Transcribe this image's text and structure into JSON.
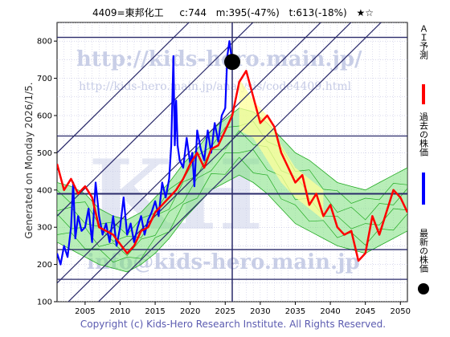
{
  "header": {
    "ticker": "4409=東邦化工",
    "current": "c:744",
    "min": "m:395(-47%)",
    "target": "t:613(-18%)",
    "stars": "★☆"
  },
  "side_text": "Generated on Monday 2026/1/5.",
  "copyright": "Copyright (c) Kids-Hero Research Institute. All Rights Reserved.",
  "watermarks": {
    "url_big": "http://kids-hero.main.jp/",
    "url_small": "http://kids-hero.main.jp/analysis/code4409.html",
    "email": "info@kids-hero.main.jp",
    "logo": "KH"
  },
  "legend": [
    {
      "label": "ＡＩ予測",
      "color": "#ff0000"
    },
    {
      "label": "過去の株価",
      "color": "#0000ff"
    },
    {
      "label": "最新の株価",
      "color": "#000000"
    }
  ],
  "colors": {
    "ai": "#ff0000",
    "past": "#0000ff",
    "band": "#7ee07e",
    "band_line": "#22aa22",
    "yellow": "#ffff99",
    "grid": "#b0b0d8",
    "channel": "#2a2a6a"
  },
  "chart_data": {
    "type": "line",
    "xlim": [
      2001,
      2051
    ],
    "ylim": [
      100,
      850
    ],
    "x_ticks": [
      2005,
      2010,
      2015,
      2020,
      2025,
      2030,
      2035,
      2040,
      2045,
      2050
    ],
    "y_ticks": [
      100,
      200,
      300,
      400,
      500,
      600,
      700,
      800
    ],
    "horizontal_levels": [
      160,
      240,
      390,
      545,
      810
    ],
    "latest": {
      "year": 2026.0,
      "value": 744
    },
    "series": [
      {
        "id": "past",
        "x": [
          2001.0,
          2001.5,
          2002.0,
          2002.5,
          2003.0,
          2003.3,
          2003.6,
          2004.0,
          2004.5,
          2005.0,
          2005.5,
          2006.0,
          2006.5,
          2007.0,
          2007.5,
          2008.0,
          2008.5,
          2009.0,
          2009.5,
          2010.0,
          2010.5,
          2011.0,
          2011.5,
          2012.0,
          2012.5,
          2013.0,
          2013.5,
          2014.0,
          2014.5,
          2015.0,
          2015.5,
          2016.0,
          2016.5,
          2017.0,
          2017.3,
          2017.6,
          2017.8,
          2018.0,
          2018.2,
          2018.5,
          2019.0,
          2019.5,
          2020.0,
          2020.3,
          2020.6,
          2021.0,
          2021.5,
          2022.0,
          2022.5,
          2023.0,
          2023.5,
          2024.0,
          2024.5,
          2025.0,
          2025.3,
          2025.6,
          2025.8,
          2026.0
        ],
        "y": [
          230,
          200,
          250,
          220,
          300,
          420,
          270,
          330,
          290,
          300,
          350,
          260,
          420,
          330,
          280,
          310,
          260,
          330,
          250,
          300,
          380,
          280,
          310,
          260,
          300,
          330,
          280,
          320,
          340,
          370,
          330,
          420,
          380,
          430,
          520,
          760,
          520,
          640,
          520,
          480,
          460,
          540,
          470,
          500,
          410,
          560,
          510,
          480,
          560,
          500,
          580,
          530,
          600,
          620,
          760,
          800,
          770,
          744
        ]
      },
      {
        "id": "ai",
        "x": [
          2001,
          2002,
          2003,
          2004,
          2005,
          2006,
          2007,
          2008,
          2009,
          2010,
          2011,
          2012,
          2013,
          2014,
          2015,
          2016,
          2017,
          2018,
          2019,
          2020,
          2021,
          2022,
          2023,
          2024,
          2025,
          2026,
          2027,
          2028,
          2029,
          2030,
          2031,
          2032,
          2033,
          2034,
          2035,
          2036,
          2037,
          2038,
          2039,
          2040,
          2041,
          2042,
          2043,
          2044,
          2045,
          2046,
          2047,
          2048,
          2049,
          2050,
          2051
        ],
        "y": [
          470,
          400,
          430,
          390,
          410,
          380,
          300,
          290,
          280,
          255,
          230,
          250,
          290,
          300,
          340,
          360,
          380,
          400,
          430,
          470,
          500,
          460,
          510,
          520,
          560,
          600,
          690,
          720,
          650,
          580,
          600,
          570,
          500,
          460,
          420,
          440,
          360,
          390,
          330,
          360,
          300,
          280,
          290,
          210,
          230,
          330,
          280,
          340,
          400,
          380,
          340
        ]
      }
    ],
    "band": {
      "x": [
        2001,
        2003,
        2005,
        2007,
        2009,
        2011,
        2013,
        2015,
        2017,
        2019,
        2021,
        2023,
        2025,
        2027,
        2029,
        2031,
        2033,
        2035,
        2037,
        2039,
        2041,
        2043,
        2045,
        2047,
        2049,
        2051
      ],
      "upper": [
        420,
        410,
        390,
        350,
        330,
        320,
        340,
        380,
        420,
        470,
        510,
        560,
        590,
        620,
        610,
        580,
        540,
        500,
        480,
        450,
        420,
        410,
        400,
        420,
        440,
        460
      ],
      "lower": [
        260,
        240,
        220,
        200,
        190,
        180,
        200,
        230,
        270,
        320,
        360,
        400,
        420,
        440,
        420,
        390,
        350,
        310,
        290,
        270,
        250,
        240,
        230,
        250,
        270,
        290
      ]
    },
    "yellow_zone": {
      "x": [
        2027,
        2029,
        2031,
        2033,
        2035,
        2037,
        2039
      ],
      "upper": [
        700,
        640,
        600,
        520,
        460,
        430,
        400
      ],
      "lower": [
        560,
        540,
        480,
        420,
        380,
        350,
        320
      ]
    },
    "channels": [
      {
        "x": [
          2001,
          2051
        ],
        "y": [
          150,
          1080
        ]
      },
      {
        "x": [
          2001,
          2051
        ],
        "y": [
          70,
          1000
        ]
      },
      {
        "x": [
          2001,
          2051
        ],
        "y": [
          -10,
          920
        ]
      },
      {
        "x": [
          2001,
          2051
        ],
        "y": [
          500,
          1430
        ]
      },
      {
        "x": [
          2001,
          2051
        ],
        "y": [
          330,
          1260
        ]
      }
    ]
  }
}
